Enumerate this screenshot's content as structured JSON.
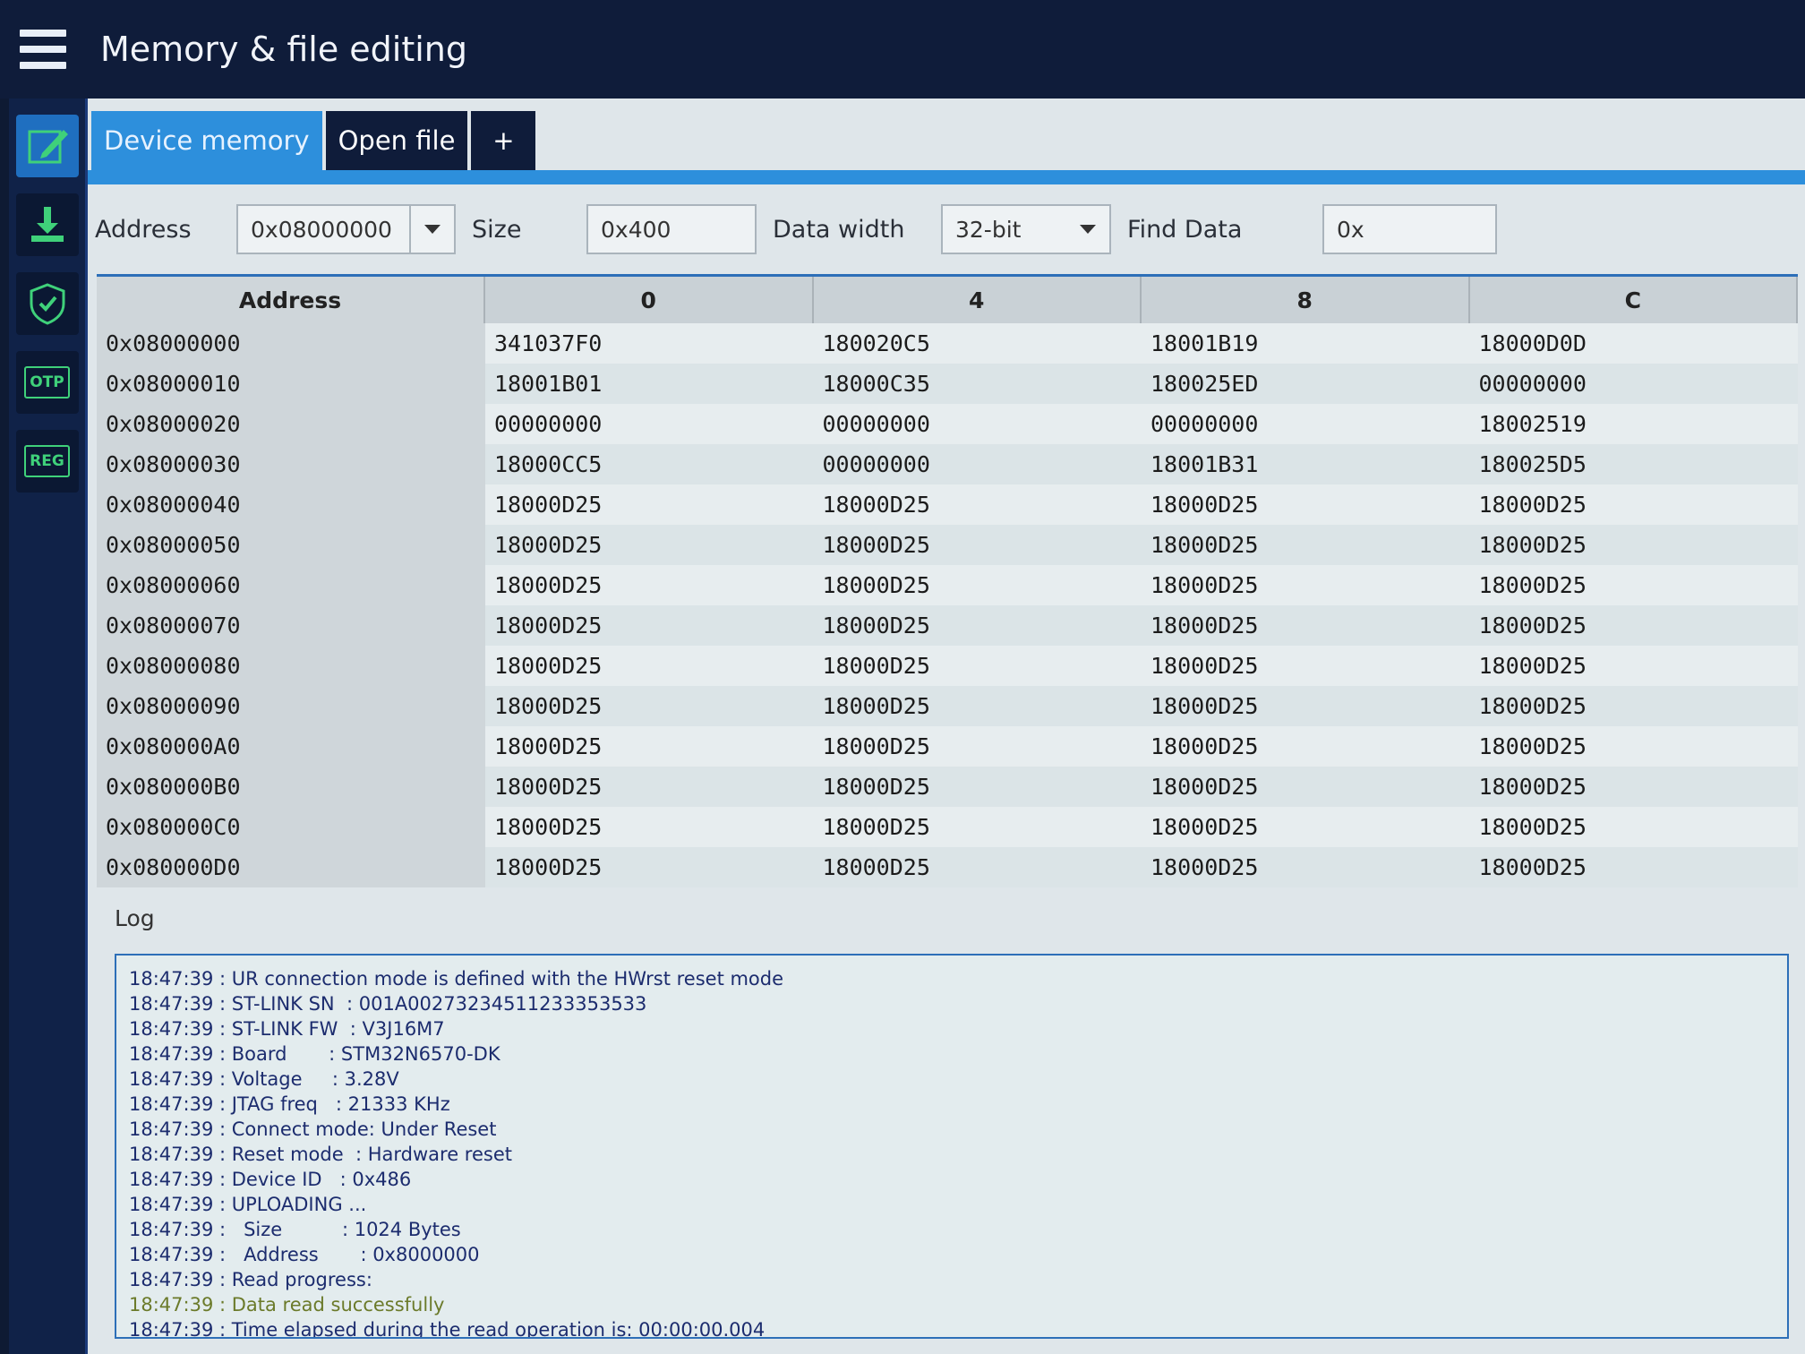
{
  "header": {
    "title": "Memory & file editing"
  },
  "sidebar": {
    "items": [
      {
        "icon": "edit-icon",
        "active": true
      },
      {
        "icon": "download-icon"
      },
      {
        "icon": "shield-icon"
      },
      {
        "icon": "otp-icon",
        "label": "OTP"
      },
      {
        "icon": "reg-icon",
        "label": "REG"
      }
    ]
  },
  "tabs": [
    {
      "label": "Device memory",
      "active": true
    },
    {
      "label": "Open file"
    },
    {
      "label": "+"
    }
  ],
  "toolbar": {
    "address_label": "Address",
    "address_value": "0x08000000",
    "size_label": "Size",
    "size_value": "0x400",
    "width_label": "Data width",
    "width_value": "32-bit",
    "find_label": "Find Data",
    "find_value": "0x"
  },
  "colors": {
    "accent": "#2d8fdc",
    "topbar": "#0f1c3a",
    "success_text": "#6b7a2a"
  },
  "table": {
    "headers": [
      "Address",
      "0",
      "4",
      "8",
      "C"
    ],
    "rows": [
      [
        "0x08000000",
        "341037F0",
        "180020C5",
        "18001B19",
        "18000D0D"
      ],
      [
        "0x08000010",
        "18001B01",
        "18000C35",
        "180025ED",
        "00000000"
      ],
      [
        "0x08000020",
        "00000000",
        "00000000",
        "00000000",
        "18002519"
      ],
      [
        "0x08000030",
        "18000CC5",
        "00000000",
        "18001B31",
        "180025D5"
      ],
      [
        "0x08000040",
        "18000D25",
        "18000D25",
        "18000D25",
        "18000D25"
      ],
      [
        "0x08000050",
        "18000D25",
        "18000D25",
        "18000D25",
        "18000D25"
      ],
      [
        "0x08000060",
        "18000D25",
        "18000D25",
        "18000D25",
        "18000D25"
      ],
      [
        "0x08000070",
        "18000D25",
        "18000D25",
        "18000D25",
        "18000D25"
      ],
      [
        "0x08000080",
        "18000D25",
        "18000D25",
        "18000D25",
        "18000D25"
      ],
      [
        "0x08000090",
        "18000D25",
        "18000D25",
        "18000D25",
        "18000D25"
      ],
      [
        "0x080000A0",
        "18000D25",
        "18000D25",
        "18000D25",
        "18000D25"
      ],
      [
        "0x080000B0",
        "18000D25",
        "18000D25",
        "18000D25",
        "18000D25"
      ],
      [
        "0x080000C0",
        "18000D25",
        "18000D25",
        "18000D25",
        "18000D25"
      ],
      [
        "0x080000D0",
        "18000D25",
        "18000D25",
        "18000D25",
        "18000D25"
      ]
    ]
  },
  "log": {
    "label": "Log",
    "lines": [
      "18:47:39 : UR connection mode is defined with the HWrst reset mode",
      "18:47:39 : ST-LINK SN  : 001A00273234511233353533",
      "18:47:39 : ST-LINK FW  : V3J16M7",
      "18:47:39 : Board       : STM32N6570-DK",
      "18:47:39 : Voltage     : 3.28V",
      "18:47:39 : JTAG freq   : 21333 KHz",
      "18:47:39 : Connect mode: Under Reset",
      "18:47:39 : Reset mode  : Hardware reset",
      "18:47:39 : Device ID   : 0x486",
      "18:47:39 : UPLOADING ...",
      "18:47:39 :   Size          : 1024 Bytes",
      "18:47:39 :   Address       : 0x8000000",
      "18:47:39 : Read progress:",
      "18:47:39 : Data read successfully",
      "18:47:39 : Time elapsed during the read operation is: 00:00:00.004"
    ],
    "success_index": 13
  }
}
